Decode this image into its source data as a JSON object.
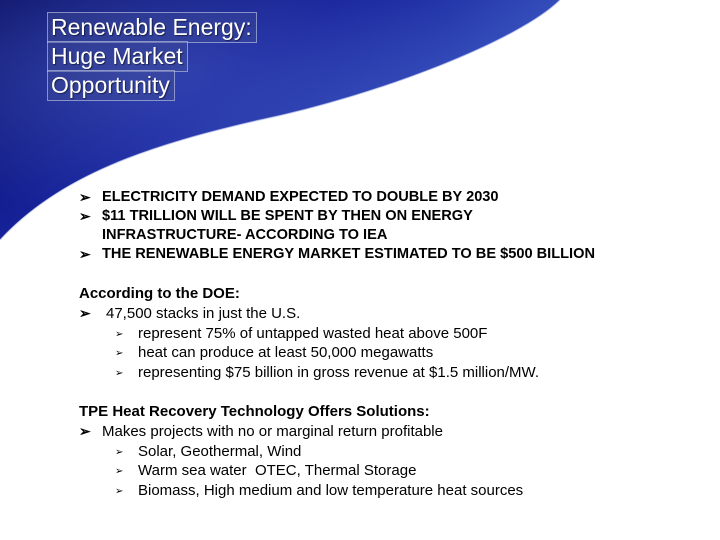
{
  "title": {
    "lines": [
      "Renewable Energy:",
      "Huge Market",
      "Opportunity"
    ]
  },
  "bullet_glyph": "➢",
  "sub_bullet_glyph": "➢",
  "headline_bullets": [
    "ELECTRICITY DEMAND EXPECTED TO DOUBLE BY 2030",
    "$11 TRILLION WILL BE SPENT BY THEN ON ENERGY INFRASTRUCTURE- ACCORDING TO IEA",
    "THE RENEWABLE ENERGY MARKET ESTIMATED TO BE $500 BILLION"
  ],
  "doe": {
    "heading": "According to the DOE:",
    "main_point": "47,500 stacks in just the U.S.",
    "sub_points": [
      "represent 75% of untapped wasted heat above 500F",
      "heat can produce at least 50,000 megawatts",
      "representing $75 billion in gross revenue at $1.5 million/MW."
    ]
  },
  "tpe": {
    "heading": "TPE Heat Recovery Technology Offers Solutions:",
    "main_point": "Makes projects with no or marginal return profitable",
    "sub_points": [
      "Solar, Geothermal, Wind",
      "Warm sea water  OTEC, Thermal Storage",
      "Biomass, High medium and low temperature heat sources"
    ]
  },
  "colors": {
    "swoosh_dark": "#0a0f6e",
    "swoosh_mid": "#2233a8",
    "swoosh_light": "#6f86d6"
  }
}
